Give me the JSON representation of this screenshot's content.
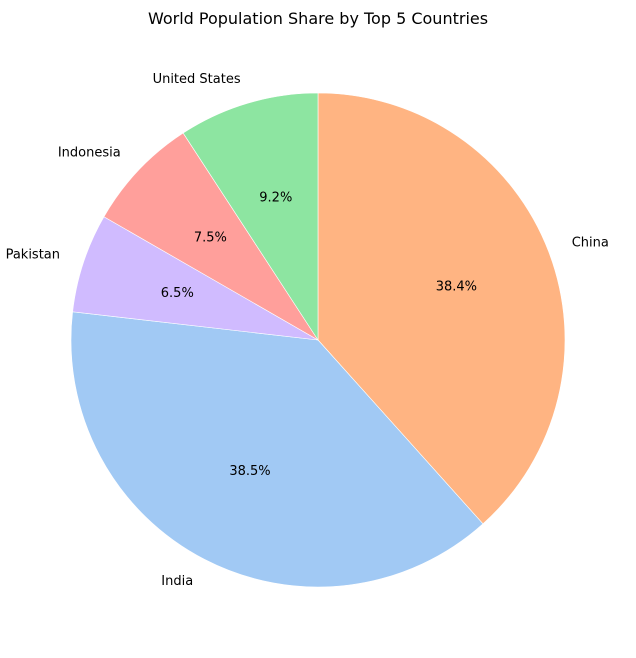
{
  "chart_data": {
    "type": "pie",
    "title": "World Population Share by Top 5 Countries",
    "start_angle_deg": 90,
    "direction": "clockwise",
    "legend": "none",
    "slices": [
      {
        "label": "China",
        "value": 38.4,
        "pct_label": "38.4%",
        "color": "#ffb482"
      },
      {
        "label": "India",
        "value": 38.5,
        "pct_label": "38.5%",
        "color": "#a1c9f4"
      },
      {
        "label": "Pakistan",
        "value": 6.5,
        "pct_label": "6.5%",
        "color": "#d0bbff"
      },
      {
        "label": "Indonesia",
        "value": 7.5,
        "pct_label": "7.5%",
        "color": "#ff9f9b"
      },
      {
        "label": "United States",
        "value": 9.2,
        "pct_label": "9.2%",
        "color": "#8de5a1"
      }
    ]
  }
}
